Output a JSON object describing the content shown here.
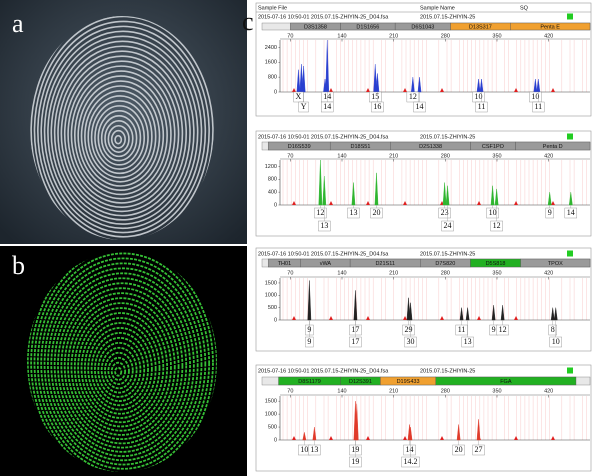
{
  "labels": {
    "a": "a",
    "b": "b",
    "c": "c"
  },
  "column_headers": [
    "Sample File",
    "Sample Name",
    "SQ"
  ],
  "panels": [
    {
      "file": "2015-07-16  10:50-01  2015.07.15-ZHIYIN-25_D04.fsa",
      "sample": "2015.07.15-ZHIYIN-25",
      "color": "#2a3fd0",
      "loci": [
        {
          "name": "D3S1358",
          "color": "#9a9a9a",
          "range": [
            70,
            138
          ]
        },
        {
          "name": "D1S1656",
          "color": "#9a9a9a",
          "range": [
            138,
            212
          ]
        },
        {
          "name": "D6S1043",
          "color": "#9a9a9a",
          "range": [
            212,
            287
          ]
        },
        {
          "name": "D13S317",
          "color": "#f0a030",
          "range": [
            287,
            368
          ]
        },
        {
          "name": "Penta E",
          "color": "#f0a030",
          "range": [
            368,
            476
          ]
        }
      ],
      "xlim": [
        56,
        476
      ],
      "xticks": [
        70,
        140,
        210,
        280,
        350,
        420
      ],
      "ylim": [
        0,
        2800
      ],
      "yticks": [
        0,
        800,
        1600,
        2400
      ],
      "peaks": {
        "x": [
          81,
          85,
          88,
          117,
          120,
          185,
          188,
          236,
          245,
          325,
          329,
          402,
          406
        ],
        "y": [
          1200,
          1500,
          1400,
          700,
          2800,
          1500,
          1000,
          800,
          800,
          700,
          700,
          700,
          700
        ]
      },
      "allele_rows": [
        [
          {
            "label": "X",
            "x": 81
          },
          {
            "label": "14",
            "x": 120
          },
          {
            "label": "15",
            "x": 185
          },
          {
            "label": "12",
            "x": 236
          },
          {
            "label": "10",
            "x": 325
          },
          {
            "label": "10",
            "x": 402
          }
        ],
        [
          {
            "label": "Y",
            "x": 88
          },
          {
            "label": "14",
            "x": 120
          },
          {
            "label": "16",
            "x": 188
          },
          {
            "label": "14",
            "x": 245
          },
          {
            "label": "11",
            "x": 329
          },
          {
            "label": "11",
            "x": 406
          }
        ]
      ]
    },
    {
      "file": "2015-07-16  10:50-01  2015.07.15-ZHIYIN-25_D04.fsa",
      "sample": "2015.07.15-ZHIYIN-25",
      "color": "#2fb52f",
      "loci": [
        {
          "name": "D16S539",
          "color": "#9a9a9a",
          "range": [
            40,
            124
          ]
        },
        {
          "name": "D18S51",
          "color": "#9a9a9a",
          "range": [
            124,
            206
          ]
        },
        {
          "name": "D2S1338",
          "color": "#9a9a9a",
          "range": [
            206,
            314
          ]
        },
        {
          "name": "CSF1PO",
          "color": "#9a9a9a",
          "range": [
            314,
            375
          ]
        },
        {
          "name": "Penta D",
          "color": "#9a9a9a",
          "range": [
            375,
            476
          ]
        }
      ],
      "xlim": [
        56,
        476
      ],
      "xticks": [
        70,
        140,
        210,
        280,
        350,
        420
      ],
      "ylim": [
        0,
        1400
      ],
      "yticks": [
        0,
        400,
        800,
        1200
      ],
      "peaks": {
        "x": [
          110.7,
          116,
          155.5,
          186.7,
          279,
          283,
          344,
          349.5,
          421.4,
          450
        ],
        "y": [
          1400,
          900,
          700,
          1000,
          700,
          600,
          600,
          500,
          400,
          400
        ]
      },
      "allele_rows": [
        [
          {
            "label": "12",
            "x": 110.7
          },
          {
            "label": "13",
            "x": 155.5
          },
          {
            "label": "20",
            "x": 186.7
          },
          {
            "label": "23",
            "x": 279
          },
          {
            "label": "10",
            "x": 344
          },
          {
            "label": "9",
            "x": 421.4
          },
          {
            "label": "14",
            "x": 450
          }
        ],
        [
          {
            "label": "13",
            "x": 116.1
          },
          {
            "label": "24",
            "x": 283
          },
          {
            "label": "12",
            "x": 349.5
          }
        ]
      ]
    },
    {
      "file": "2015-07-16  10:50-01  2015.07.15-ZHIYIN-25_D04.fsa",
      "sample": "2015.07.15-ZHIYIN-25",
      "color": "#222222",
      "loci": [
        {
          "name": "TH01",
          "color": "#9a9a9a",
          "range": [
            40,
            84
          ]
        },
        {
          "name": "vWA",
          "color": "#9a9a9a",
          "range": [
            84,
            151
          ]
        },
        {
          "name": "D21S11",
          "color": "#9a9a9a",
          "range": [
            151,
            246
          ]
        },
        {
          "name": "D7S820",
          "color": "#9a9a9a",
          "range": [
            246,
            314
          ]
        },
        {
          "name": "D5S818",
          "color": "#22b022",
          "range": [
            314,
            382
          ]
        },
        {
          "name": "TPOX",
          "color": "#9a9a9a",
          "range": [
            382,
            476
          ]
        }
      ],
      "xlim": [
        56,
        476
      ],
      "xticks": [
        70,
        140,
        210,
        280,
        350,
        420
      ],
      "ylim": [
        0,
        1700
      ],
      "yticks": [
        0,
        500,
        1000,
        1500
      ],
      "peaks": {
        "x": [
          95.8,
          158.2,
          230.1,
          232.8,
          302,
          310.2,
          345.4,
          357.6,
          425.5,
          429.6
        ],
        "y": [
          1600,
          1200,
          900,
          700,
          500,
          500,
          600,
          600,
          500,
          500
        ]
      },
      "allele_rows": [
        [
          {
            "label": "9",
            "x": 95.8
          },
          {
            "label": "17",
            "x": 158.2
          },
          {
            "label": "29",
            "x": 230.1
          },
          {
            "label": "11",
            "x": 302
          },
          {
            "label": "9",
            "x": 345.4
          },
          {
            "label": "12",
            "x": 357.6
          },
          {
            "label": "8",
            "x": 425.5
          }
        ],
        [
          {
            "label": "9",
            "x": 95.8
          },
          {
            "label": "17",
            "x": 158.2
          },
          {
            "label": "30",
            "x": 232.8
          },
          {
            "label": "13",
            "x": 310.2
          },
          {
            "label": "10",
            "x": 429.6
          }
        ]
      ]
    },
    {
      "file": "2015-07-16  10:50-01  2015.07.15-ZHIYIN-25_D04.fsa",
      "sample": "2015.07.15-ZHIYIN-25",
      "color": "#e03a2a",
      "loci": [
        {
          "name": "D8S1179",
          "color": "#22b022",
          "range": [
            54,
            138
          ]
        },
        {
          "name": "D12S391",
          "color": "#22b022",
          "range": [
            138,
            192
          ]
        },
        {
          "name": "D19S433",
          "color": "#f0a030",
          "range": [
            192,
            267
          ]
        },
        {
          "name": "FGA",
          "color": "#22b022",
          "range": [
            267,
            457
          ]
        }
      ],
      "xlim": [
        56,
        476
      ],
      "xticks": [
        70,
        140,
        210,
        280,
        350,
        420
      ],
      "ylim": [
        0,
        1700
      ],
      "yticks": [
        0,
        500,
        1000,
        1500
      ],
      "peaks": {
        "x": [
          89,
          102.6,
          158.2,
          160,
          231.5,
          232.8,
          298,
          325
        ],
        "y": [
          300,
          500,
          1500,
          1400,
          600,
          500,
          600,
          800
        ]
      },
      "allele_rows": [
        [
          {
            "label": "10",
            "x": 89
          },
          {
            "label": "13",
            "x": 102.6
          },
          {
            "label": "19",
            "x": 158.2
          },
          {
            "label": "14",
            "x": 231.5
          },
          {
            "label": "20",
            "x": 298
          },
          {
            "label": "27",
            "x": 325
          }
        ],
        [
          {
            "label": "19",
            "x": 158.2
          },
          {
            "label": "14.2",
            "x": 232.8
          }
        ]
      ]
    }
  ]
}
